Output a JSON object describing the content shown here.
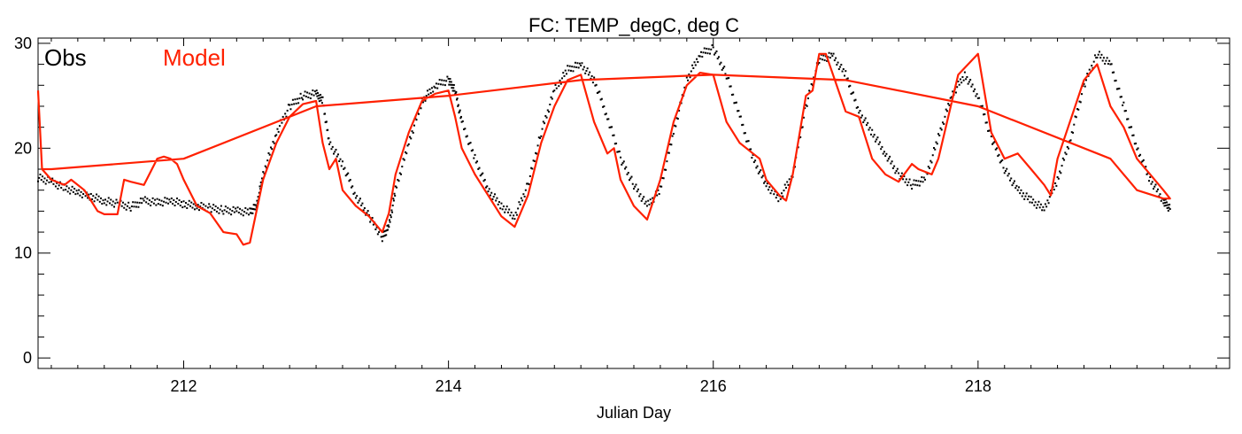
{
  "chart_data": {
    "type": "line",
    "title": "FC: TEMP_degC, deg C",
    "xlabel": "Julian Day",
    "ylabel": "",
    "xlim": [
      210.9,
      219.9
    ],
    "ylim": [
      -1,
      30.5
    ],
    "x_ticks": [
      212,
      214,
      216,
      218
    ],
    "y_ticks": [
      0,
      10,
      20,
      30
    ],
    "grid": false,
    "legend_position": "top-left",
    "colors": {
      "Obs": "#000000",
      "Model": "#ff2000"
    },
    "series": [
      {
        "name": "Obs",
        "style": "dots",
        "x": [
          210.9,
          211.0,
          211.1,
          211.2,
          211.3,
          211.4,
          211.5,
          211.6,
          211.7,
          211.8,
          211.9,
          212.0,
          212.1,
          212.2,
          212.3,
          212.4,
          212.5,
          212.55,
          212.6,
          212.7,
          212.8,
          212.9,
          213.0,
          213.05,
          213.1,
          213.2,
          213.3,
          213.4,
          213.5,
          213.55,
          213.6,
          213.7,
          213.8,
          213.9,
          214.0,
          214.05,
          214.1,
          214.2,
          214.3,
          214.4,
          214.5,
          214.6,
          214.7,
          214.8,
          214.9,
          215.0,
          215.1,
          215.2,
          215.3,
          215.4,
          215.5,
          215.6,
          215.7,
          215.8,
          215.9,
          216.0,
          216.1,
          216.2,
          216.3,
          216.4,
          216.5,
          216.6,
          216.7,
          216.8,
          216.9,
          217.0,
          217.1,
          217.2,
          217.3,
          217.4,
          217.5,
          217.6,
          217.7,
          217.8,
          217.9,
          218.0,
          218.1,
          218.2,
          218.3,
          218.4,
          218.5,
          218.6,
          218.7,
          218.8,
          218.9,
          219.0,
          219.1,
          219.2,
          219.3,
          219.4,
          219.45
        ],
        "y": [
          17.2,
          16.8,
          16.2,
          15.8,
          15.4,
          15.0,
          14.7,
          14.4,
          15.0,
          14.8,
          15.0,
          14.7,
          14.5,
          14.3,
          14.1,
          14.0,
          13.9,
          14.5,
          17.5,
          21.5,
          24.0,
          25.0,
          25.2,
          24.5,
          20.5,
          18.5,
          15.5,
          13.5,
          11.5,
          12.5,
          16.0,
          20.5,
          24.5,
          26.0,
          26.5,
          25.5,
          22.5,
          19.0,
          16.0,
          14.5,
          13.5,
          16.5,
          21.5,
          25.5,
          27.5,
          28.0,
          26.5,
          23.0,
          19.0,
          16.5,
          14.5,
          16.0,
          21.5,
          26.5,
          29.0,
          29.5,
          27.0,
          23.0,
          19.0,
          16.5,
          15.2,
          17.5,
          24.0,
          28.5,
          28.8,
          27.0,
          23.5,
          21.5,
          19.5,
          17.5,
          16.5,
          17.0,
          21.0,
          25.0,
          27.0,
          25.0,
          21.0,
          18.0,
          16.0,
          15.0,
          14.2,
          17.0,
          21.0,
          26.0,
          29.0,
          28.0,
          24.0,
          20.0,
          17.0,
          15.0,
          14.2
        ]
      },
      {
        "name": "Model",
        "style": "line",
        "x": [
          210.9,
          210.93,
          211.0,
          211.1,
          211.15,
          211.25,
          211.3,
          211.35,
          211.4,
          211.45,
          211.5,
          211.55,
          211.6,
          211.7,
          211.8,
          211.85,
          211.9,
          211.95,
          212.0,
          212.1,
          212.2,
          212.3,
          212.4,
          212.45,
          212.5,
          212.6,
          212.7,
          212.8,
          212.9,
          213.0,
          213.05,
          213.1,
          213.15,
          213.2,
          213.3,
          213.4,
          213.5,
          213.55,
          213.6,
          213.7,
          213.8,
          213.9,
          214.0,
          214.05,
          214.1,
          214.2,
          214.3,
          214.4,
          214.5,
          214.6,
          214.7,
          214.8,
          214.9,
          215.0,
          215.1,
          215.2,
          215.25,
          215.3,
          215.4,
          215.5,
          215.6,
          215.7,
          215.8,
          215.9,
          216.0,
          216.1,
          216.2,
          216.3,
          216.35,
          216.4,
          216.5,
          216.55,
          216.6,
          216.7,
          216.75,
          216.8,
          216.85,
          217.0,
          217.1,
          217.2,
          217.3,
          217.4,
          217.5,
          217.55,
          217.65,
          217.7,
          217.85,
          218.0,
          218.1,
          218.2,
          218.3,
          218.4,
          218.5,
          218.55,
          218.6,
          218.8,
          218.9,
          219.0,
          219.1,
          219.2,
          219.3,
          219.4,
          219.45,
          219.4,
          219.2,
          219.0,
          218.0,
          217.0,
          216.0,
          215.0,
          214.0,
          213.0,
          212.0,
          211.0,
          210.93
        ],
        "y": [
          25.5,
          18.0,
          17.0,
          16.5,
          17.0,
          16.0,
          15.0,
          14.0,
          13.7,
          13.7,
          13.7,
          17.0,
          16.8,
          16.5,
          19.0,
          19.2,
          19.0,
          18.5,
          17.0,
          14.5,
          13.8,
          12.0,
          11.8,
          10.8,
          11.0,
          17.0,
          20.5,
          23.0,
          24.2,
          24.5,
          20.5,
          18.0,
          19.0,
          16.0,
          14.5,
          13.5,
          12.0,
          13.8,
          17.5,
          21.5,
          24.5,
          25.2,
          25.5,
          23.0,
          20.0,
          17.5,
          15.5,
          13.5,
          12.5,
          15.5,
          20.5,
          24.0,
          26.5,
          27.0,
          22.5,
          19.5,
          20.0,
          17.0,
          14.5,
          13.2,
          17.0,
          22.5,
          26.0,
          27.2,
          27.0,
          22.5,
          20.5,
          19.5,
          19.0,
          17.0,
          15.5,
          15.0,
          17.5,
          25.0,
          25.5,
          29.0,
          29.0,
          23.5,
          23.0,
          19.0,
          17.5,
          16.8,
          18.5,
          18.0,
          17.5,
          19.0,
          27.0,
          29.0,
          21.5,
          19.0,
          19.5,
          18.0,
          16.5,
          15.5,
          19.0,
          26.5,
          28.0,
          24.0,
          22.0,
          19.0,
          17.5,
          16.0,
          15.2,
          15.2,
          16.0,
          19.0,
          24.0,
          26.5,
          27.0,
          26.5,
          25.0,
          24.0,
          19.0,
          18.0,
          18.0
        ]
      }
    ]
  }
}
